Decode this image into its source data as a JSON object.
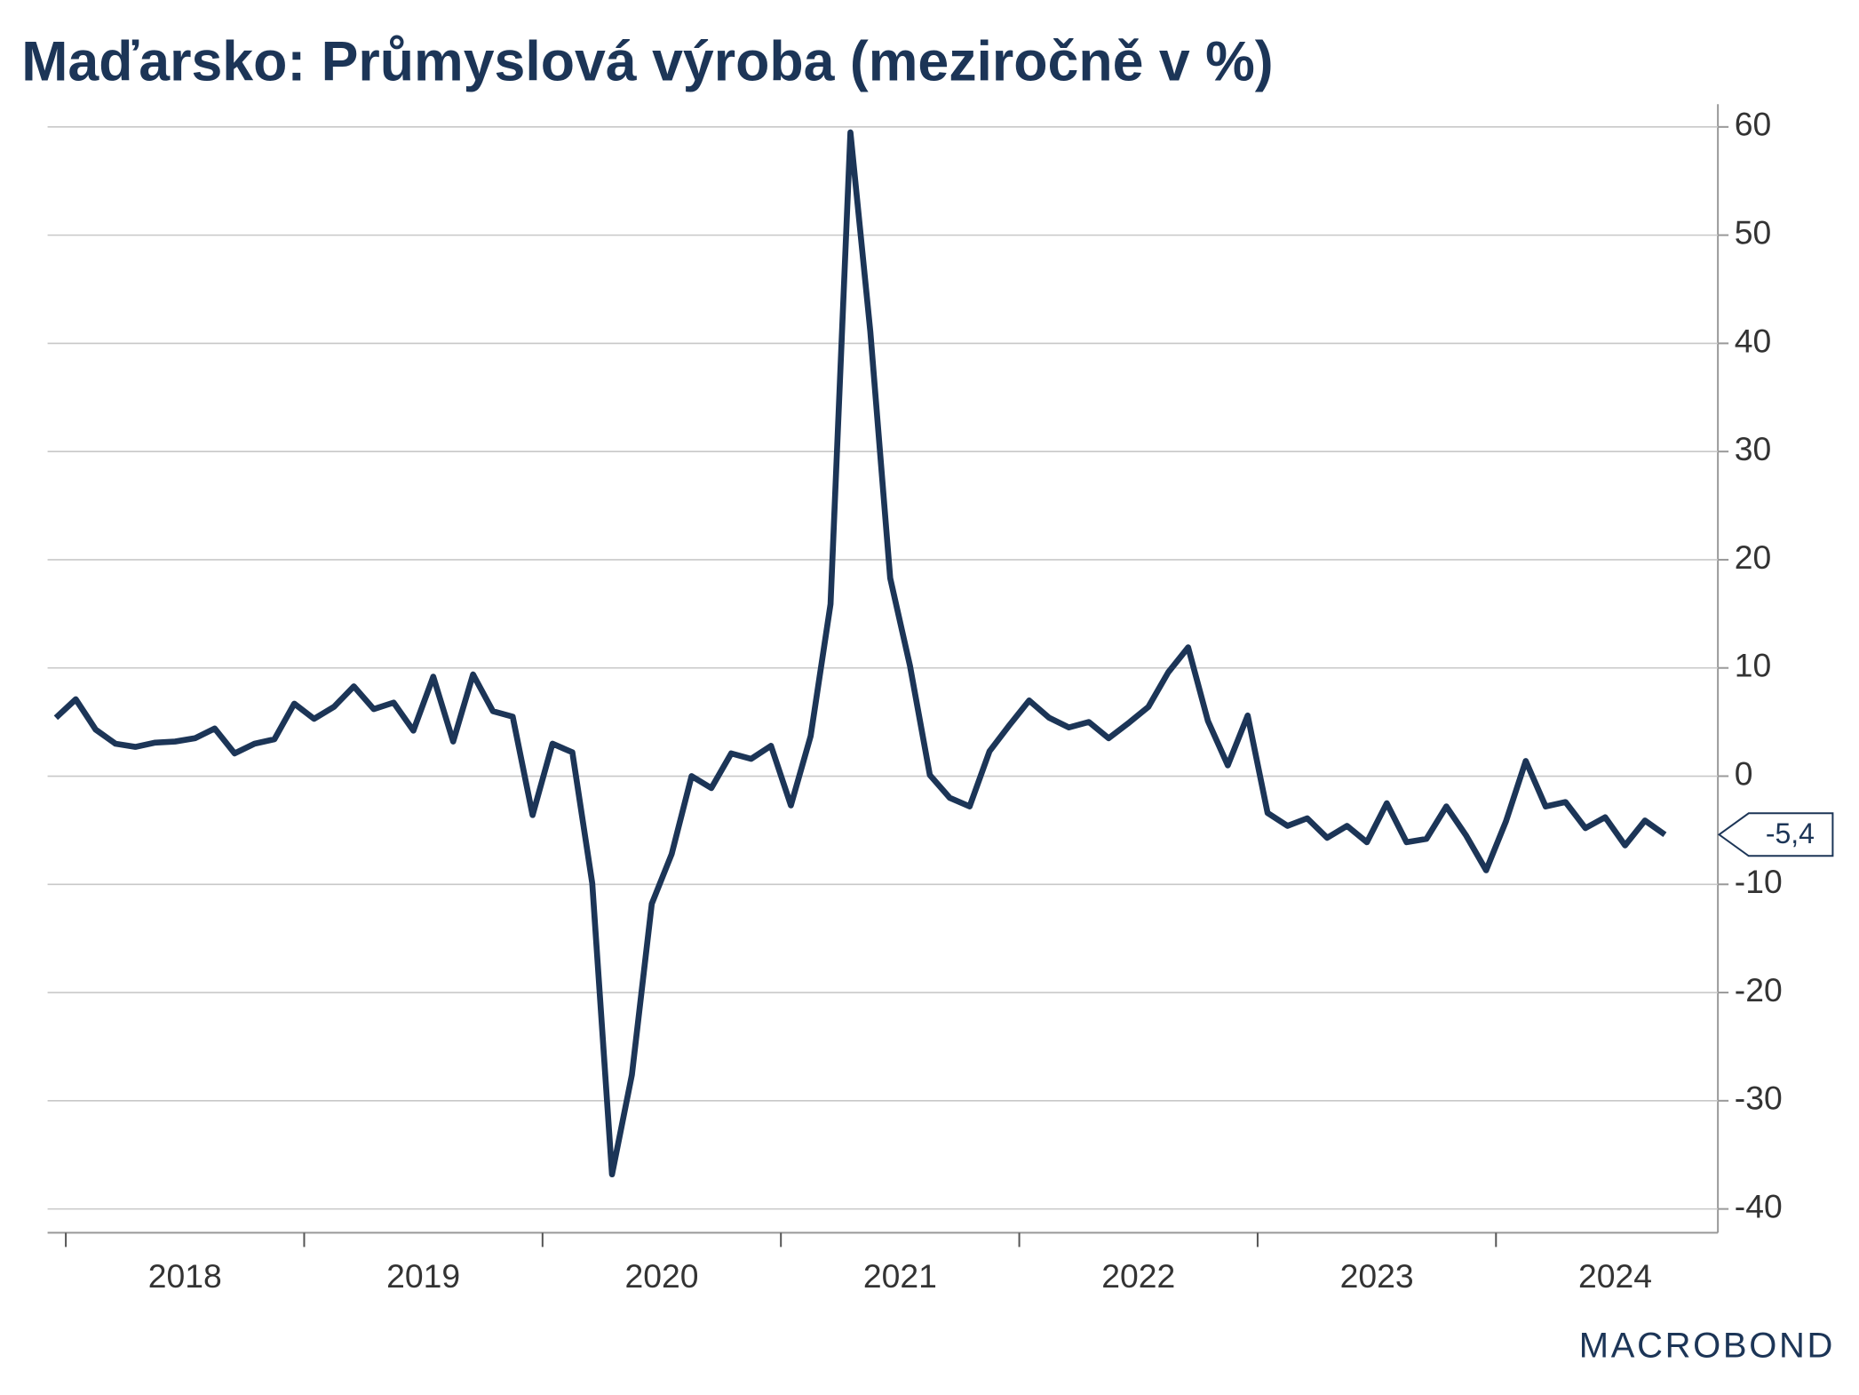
{
  "chart_data": {
    "type": "line",
    "title": "Maďarsko: Průmyslová výroba (meziročně v %)",
    "categories": [
      null,
      null,
      null,
      null,
      null,
      null,
      "2018",
      null,
      null,
      null,
      null,
      null,
      null,
      null,
      null,
      null,
      null,
      null,
      "2019",
      null,
      null,
      null,
      null,
      null,
      null,
      null,
      null,
      null,
      null,
      null,
      "2020",
      null,
      null,
      null,
      null,
      null,
      null,
      null,
      null,
      null,
      null,
      null,
      "2021",
      null,
      null,
      null,
      null,
      null,
      null,
      null,
      null,
      null,
      null,
      null,
      "2022",
      null,
      null,
      null,
      null,
      null,
      null,
      null,
      null,
      null,
      null,
      null,
      "2023",
      null,
      null,
      null,
      null,
      null,
      null,
      null,
      null,
      null,
      null,
      null,
      "2024",
      null,
      null,
      null
    ],
    "series": [
      {
        "color": "#1c3557",
        "values": [
          5.4,
          7.1,
          4.3,
          3.0,
          2.7,
          3.1,
          3.2,
          3.5,
          4.4,
          2.1,
          3.0,
          3.4,
          6.7,
          5.3,
          6.4,
          8.3,
          6.2,
          6.8,
          4.2,
          9.2,
          3.2,
          9.4,
          6.0,
          5.5,
          -3.6,
          3.0,
          2.2,
          -9.9,
          -36.8,
          -27.6,
          -11.8,
          -7.2,
          0.0,
          -1.1,
          2.1,
          1.6,
          2.8,
          -2.7,
          3.7,
          15.9,
          59.5,
          41.1,
          18.3,
          10.2,
          0.1,
          -2.0,
          -2.8,
          2.3,
          4.7,
          7.0,
          5.4,
          4.5,
          5.0,
          3.5,
          4.9,
          6.4,
          9.6,
          11.9,
          5.1,
          1.0,
          5.6,
          -3.4,
          -4.6,
          -3.9,
          -5.7,
          -4.6,
          -6.1,
          -2.5,
          -6.1,
          -5.8,
          -2.8,
          -5.5,
          -8.7,
          -4.2,
          1.4,
          -2.8,
          -2.4,
          -4.8,
          -3.8,
          -6.4,
          -4.1,
          -5.4
        ]
      }
    ],
    "annotation": {
      "value": -5.4,
      "label": "-5,4"
    },
    "ylim": [
      -42.2,
      62.1
    ],
    "yticks": [
      -40,
      -30,
      -20,
      -10,
      0,
      10,
      20,
      30,
      40,
      50,
      60
    ],
    "grid": true,
    "source": "MACROBOND"
  }
}
